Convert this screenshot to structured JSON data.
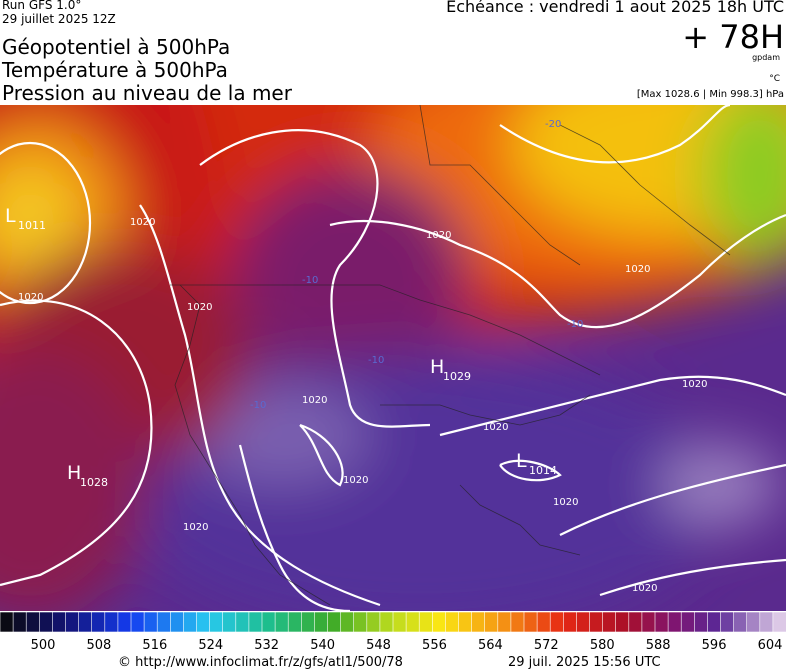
{
  "header": {
    "run": "Run GFS 1.0°",
    "run_date": "29 juillet 2025 12Z",
    "valid": "Echéance : vendredi 1 aout 2025 18h UTC",
    "lead": "+ 78H",
    "unit_gpdam": "gpdam",
    "unit_temp": "°C",
    "pressure_range": "[Max 1028.6 | Min 998.3] hPa",
    "titles": [
      "Géopotentiel à 500hPa",
      "Température à 500hPa",
      "Pression au niveau de la mer"
    ]
  },
  "map": {
    "centers": [
      {
        "symbol": "L",
        "value": "1011"
      },
      {
        "symbol": "H",
        "value": "1029"
      },
      {
        "symbol": "H",
        "value": "1028"
      },
      {
        "symbol": "L",
        "value": "1014"
      }
    ],
    "isobar_labels": [
      "1020",
      "1020",
      "1020",
      "1020",
      "1020",
      "1020",
      "1020",
      "1020",
      "1020",
      "1020",
      "1020",
      "1020"
    ],
    "temp_labels": [
      "-10",
      "-10",
      "-10",
      "-10",
      "-20"
    ]
  },
  "colorbar": {
    "labels": [
      500,
      508,
      516,
      524,
      532,
      540,
      548,
      556,
      564,
      572,
      580,
      588,
      596,
      604
    ]
  },
  "footer": {
    "url": "© http://www.infoclimat.fr/z/gfs/atl1/500/78",
    "timestamp": "29 juil. 2025 15:56 UTC"
  }
}
